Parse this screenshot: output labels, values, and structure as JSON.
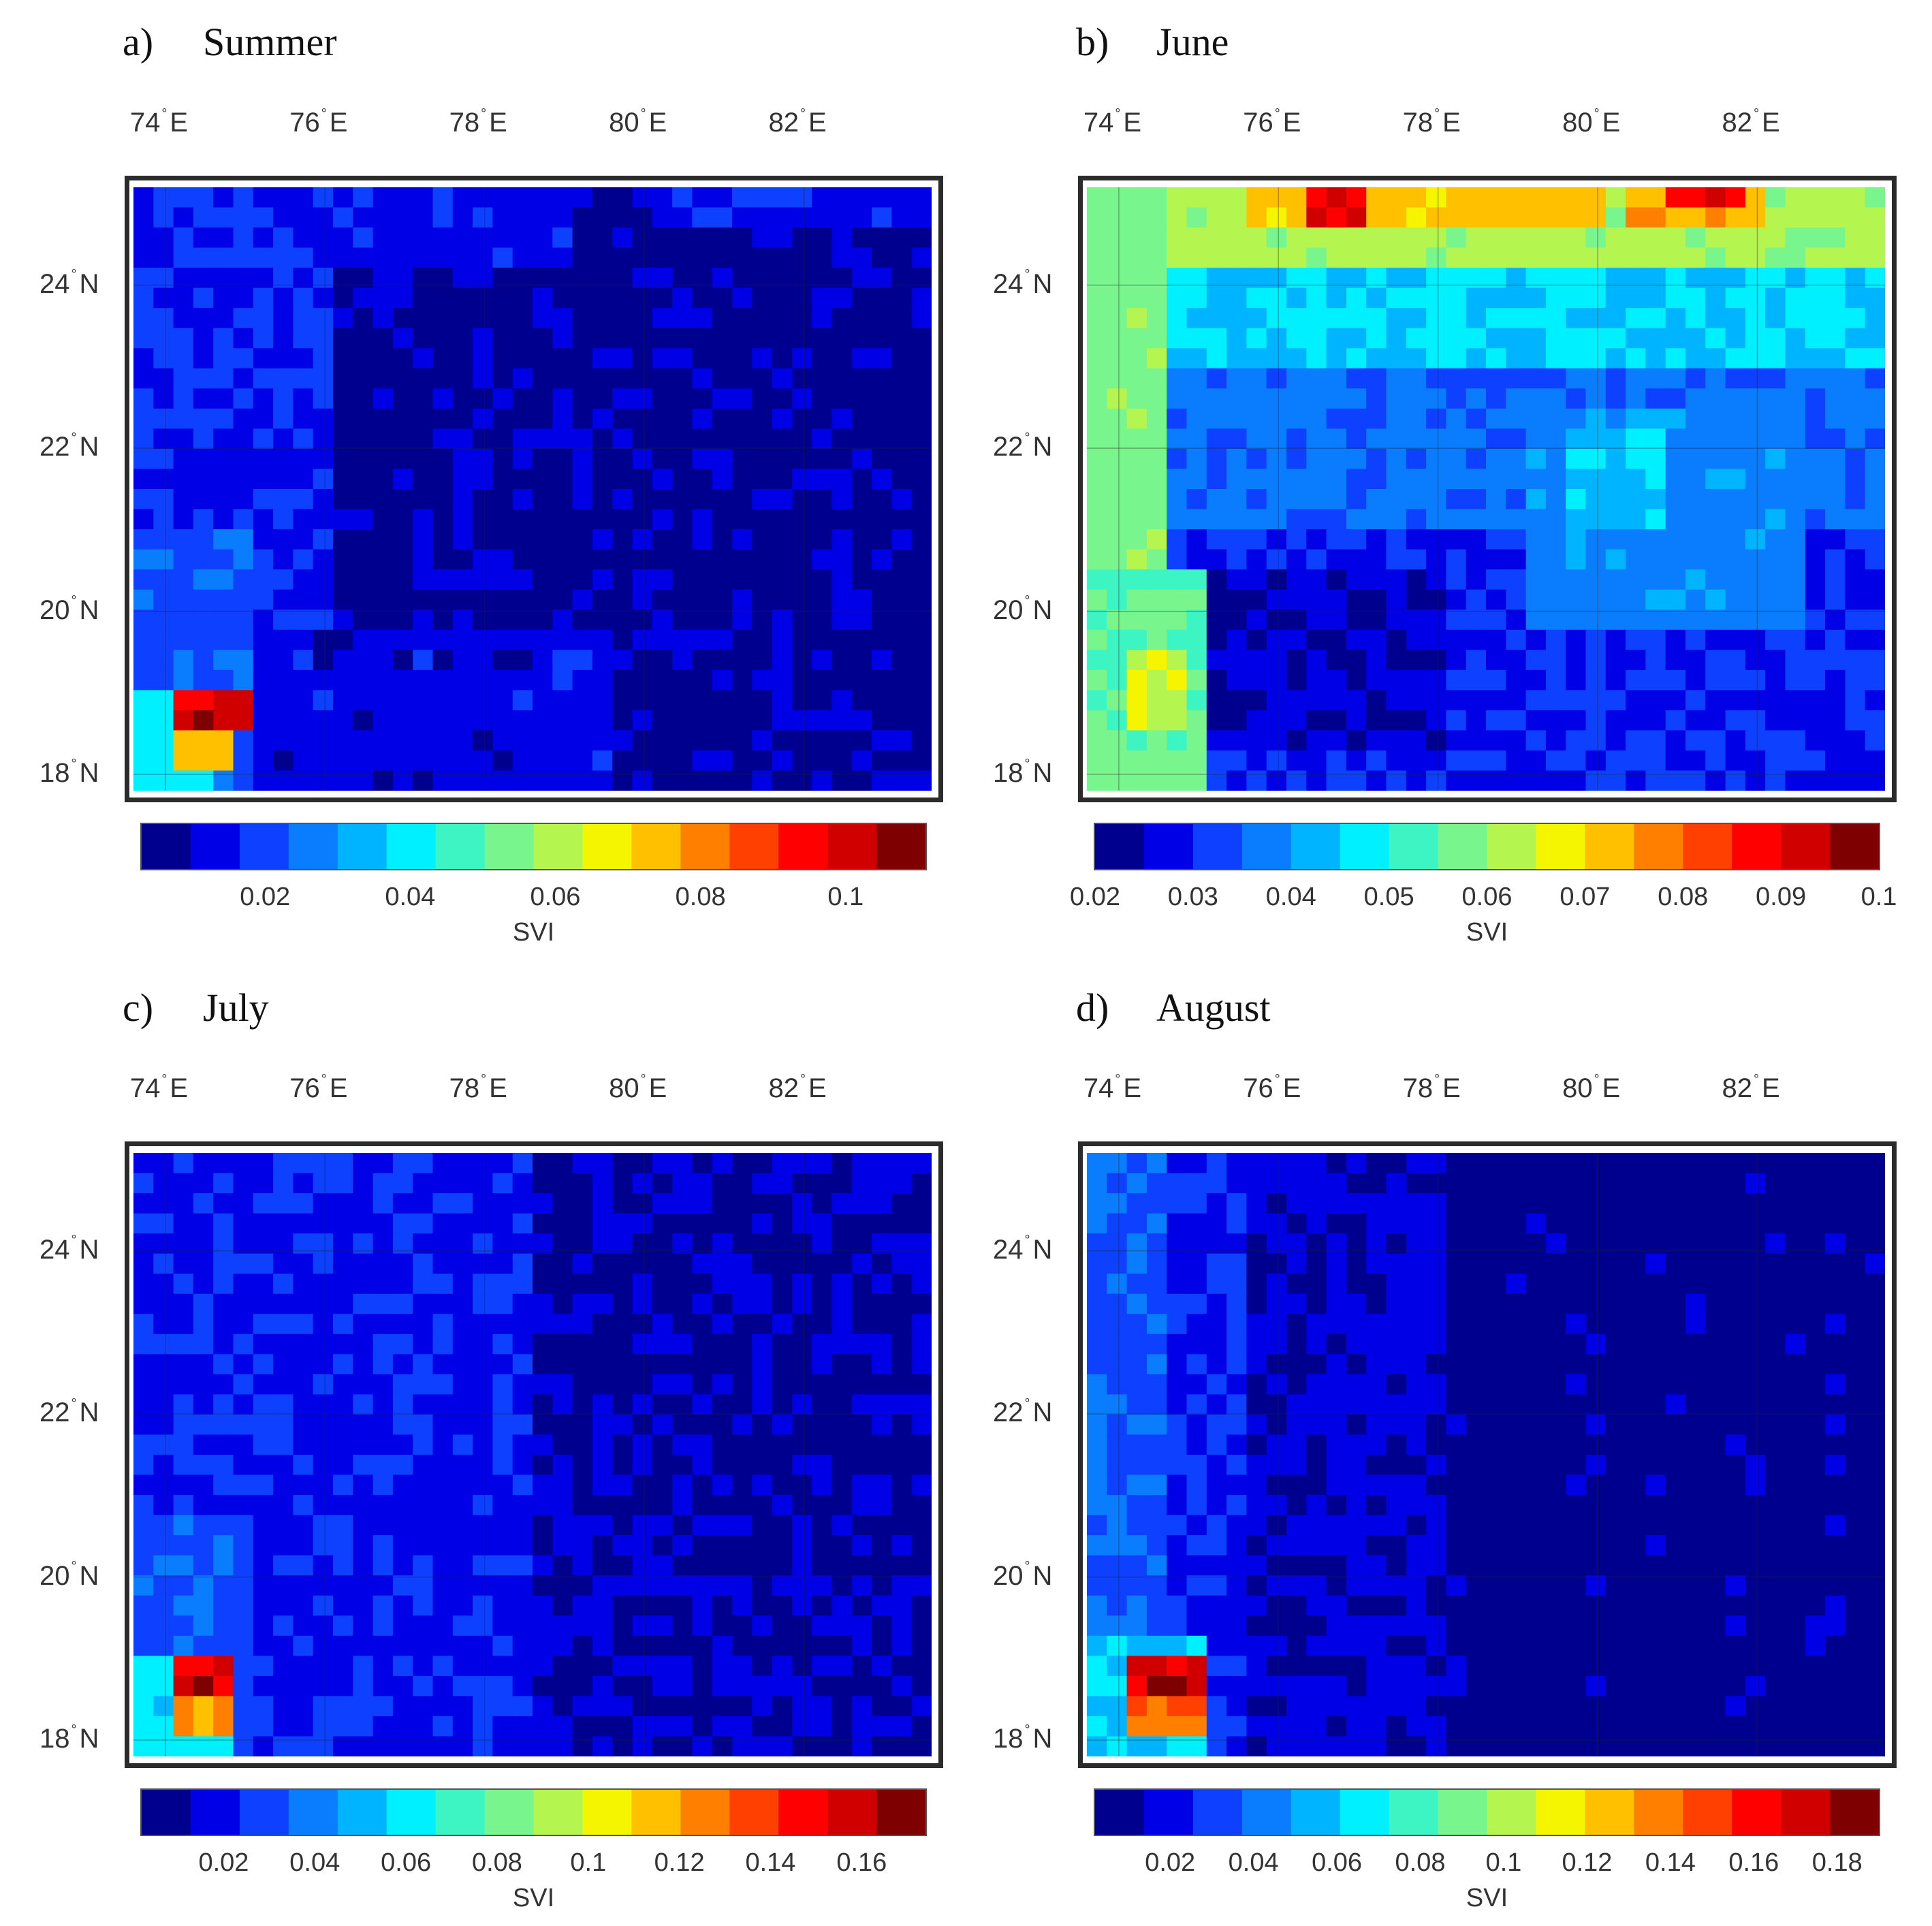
{
  "colormap": [
    "#00008f",
    "#0000e6",
    "#0d40ff",
    "#0a7dff",
    "#00b4ff",
    "#00f0ff",
    "#3cf5c3",
    "#78f58c",
    "#b4f550",
    "#f5f500",
    "#ffc000",
    "#ff8000",
    "#ff4000",
    "#ff0000",
    "#d00000",
    "#7f0000"
  ],
  "chart_data": [
    {
      "type": "heatmap",
      "title": "Summer",
      "letter": "a)",
      "x_ticks": [
        "74",
        "76",
        "78",
        "80",
        "82"
      ],
      "x_unit": "E",
      "y_ticks": [
        "24",
        "22",
        "20",
        "18"
      ],
      "y_unit": "N",
      "colorbar_label": "SVI",
      "colorbar_range": [
        0.003,
        0.111
      ],
      "colorbar_ticks": [
        "0.02",
        "0.04",
        "0.06",
        "0.08",
        "0.1"
      ],
      "colorbar_tick_values": [
        0.02,
        0.04,
        0.06,
        0.08,
        0.1
      ],
      "grid": {
        "lon_range": [
          73.6,
          83.6
        ],
        "lat_range": [
          17.8,
          25.2
        ],
        "ncols": 40,
        "nrows": 30,
        "data_units": "SVI"
      },
      "background_value": 0.008,
      "features": [
        {
          "lon": [
            73.6,
            76.0
          ],
          "lat": [
            17.8,
            25.2
          ],
          "value": 0.016
        },
        {
          "lon": [
            73.6,
            75.2
          ],
          "lat": [
            17.8,
            21.0
          ],
          "value": 0.022
        },
        {
          "lon": [
            75.2,
            79.6
          ],
          "lat": [
            17.8,
            19.8
          ],
          "value": 0.013
        },
        {
          "lon": [
            75.6,
            79.0
          ],
          "lat": [
            24.2,
            25.2
          ],
          "value": 0.014
        },
        {
          "lon": [
            80.0,
            83.6
          ],
          "lat": [
            24.6,
            25.2
          ],
          "value": 0.014
        },
        {
          "lon": [
            73.6,
            74.6
          ],
          "lat": [
            17.8,
            19.1
          ],
          "value": 0.04
        },
        {
          "lon": [
            74.0,
            74.8
          ],
          "lat": [
            18.1,
            19.1
          ],
          "value": 0.075
        },
        {
          "lon": [
            74.2,
            75.0
          ],
          "lat": [
            18.6,
            19.0
          ],
          "value": 0.1
        },
        {
          "lon": [
            74.4,
            74.6
          ],
          "lat": [
            18.6,
            18.8
          ],
          "value": 0.11
        }
      ]
    },
    {
      "type": "heatmap",
      "title": "June",
      "letter": "b)",
      "x_ticks": [
        "74",
        "76",
        "78",
        "80",
        "82"
      ],
      "x_unit": "E",
      "y_ticks": [
        "24",
        "22",
        "20",
        "18"
      ],
      "y_unit": "N",
      "colorbar_label": "SVI",
      "colorbar_range": [
        0.02,
        0.1
      ],
      "colorbar_ticks": [
        "0.02",
        "0.03",
        "0.04",
        "0.05",
        "0.06",
        "0.07",
        "0.08",
        "0.09",
        "0.1"
      ],
      "colorbar_tick_values": [
        0.02,
        0.03,
        0.04,
        0.05,
        0.06,
        0.07,
        0.08,
        0.09,
        0.1
      ],
      "grid": {
        "lon_range": [
          73.6,
          83.6
        ],
        "lat_range": [
          17.8,
          25.2
        ],
        "ncols": 40,
        "nrows": 30,
        "data_units": "SVI"
      },
      "background_value": 0.03,
      "features": [
        {
          "lon": [
            73.6,
            83.6
          ],
          "lat": [
            21.0,
            23.0
          ],
          "value": 0.036
        },
        {
          "lon": [
            73.6,
            83.6
          ],
          "lat": [
            23.0,
            24.3
          ],
          "value": 0.045
        },
        {
          "lon": [
            73.6,
            83.6
          ],
          "lat": [
            24.3,
            25.2
          ],
          "value": 0.062
        },
        {
          "lon": [
            75.6,
            80.0
          ],
          "lat": [
            24.6,
            25.2
          ],
          "value": 0.072
        },
        {
          "lon": [
            80.4,
            82.0
          ],
          "lat": [
            24.6,
            25.2
          ],
          "value": 0.075
        },
        {
          "lon": [
            76.4,
            77.2
          ],
          "lat": [
            24.8,
            25.2
          ],
          "value": 0.09
        },
        {
          "lon": [
            80.8,
            81.8
          ],
          "lat": [
            24.9,
            25.2
          ],
          "value": 0.09
        },
        {
          "lon": [
            73.6,
            74.6
          ],
          "lat": [
            20.5,
            25.2
          ],
          "value": 0.058
        },
        {
          "lon": [
            73.6,
            75.0
          ],
          "lat": [
            17.8,
            20.5
          ],
          "value": 0.055
        },
        {
          "lon": [
            74.0,
            74.8
          ],
          "lat": [
            18.6,
            19.6
          ],
          "value": 0.065
        },
        {
          "lon": [
            79.0,
            82.6
          ],
          "lat": [
            19.8,
            22.5
          ],
          "value": 0.038
        },
        {
          "lon": [
            79.6,
            80.8
          ],
          "lat": [
            21.0,
            22.2
          ],
          "value": 0.045
        },
        {
          "lon": [
            75.0,
            78.2
          ],
          "lat": [
            18.2,
            20.5
          ],
          "value": 0.025
        }
      ]
    },
    {
      "type": "heatmap",
      "title": "July",
      "letter": "c)",
      "x_ticks": [
        "74",
        "76",
        "78",
        "80",
        "82"
      ],
      "x_unit": "E",
      "y_ticks": [
        "24",
        "22",
        "20",
        "18"
      ],
      "y_unit": "N",
      "colorbar_label": "SVI",
      "colorbar_range": [
        0.002,
        0.174
      ],
      "colorbar_ticks": [
        "0.02",
        "0.04",
        "0.06",
        "0.08",
        "0.1",
        "0.12",
        "0.14",
        "0.16"
      ],
      "colorbar_tick_values": [
        0.02,
        0.04,
        0.06,
        0.08,
        0.1,
        0.12,
        0.14,
        0.16
      ],
      "grid": {
        "lon_range": [
          73.6,
          83.6
        ],
        "lat_range": [
          17.8,
          25.2
        ],
        "ncols": 40,
        "nrows": 30,
        "data_units": "SVI"
      },
      "background_value": 0.014,
      "features": [
        {
          "lon": [
            73.6,
            78.6
          ],
          "lat": [
            17.8,
            25.2
          ],
          "value": 0.022
        },
        {
          "lon": [
            78.6,
            83.6
          ],
          "lat": [
            20.0,
            24.8
          ],
          "value": 0.011
        },
        {
          "lon": [
            73.6,
            75.0
          ],
          "lat": [
            17.8,
            20.8
          ],
          "value": 0.032
        },
        {
          "lon": [
            73.6,
            74.8
          ],
          "lat": [
            17.8,
            19.1
          ],
          "value": 0.06
        },
        {
          "lon": [
            74.0,
            74.8
          ],
          "lat": [
            18.0,
            19.1
          ],
          "value": 0.12
        },
        {
          "lon": [
            74.2,
            74.9
          ],
          "lat": [
            18.5,
            19.0
          ],
          "value": 0.15
        },
        {
          "lon": [
            74.4,
            74.7
          ],
          "lat": [
            18.6,
            18.8
          ],
          "value": 0.17
        }
      ]
    },
    {
      "type": "heatmap",
      "title": "August",
      "letter": "d)",
      "x_ticks": [
        "74",
        "76",
        "78",
        "80",
        "82"
      ],
      "x_unit": "E",
      "y_ticks": [
        "24",
        "22",
        "20",
        "18"
      ],
      "y_unit": "N",
      "colorbar_label": "SVI",
      "colorbar_range": [
        0.002,
        0.19
      ],
      "colorbar_ticks": [
        "0.02",
        "0.04",
        "0.06",
        "0.08",
        "0.1",
        "0.12",
        "0.14",
        "0.16",
        "0.18"
      ],
      "colorbar_tick_values": [
        0.02,
        0.04,
        0.06,
        0.08,
        0.1,
        0.12,
        0.14,
        0.16,
        0.18
      ],
      "grid": {
        "lon_range": [
          73.6,
          83.6
        ],
        "lat_range": [
          17.8,
          25.2
        ],
        "ncols": 40,
        "nrows": 30,
        "data_units": "SVI"
      },
      "background_value": 0.008,
      "features": [
        {
          "lon": [
            73.6,
            78.2
          ],
          "lat": [
            17.8,
            25.2
          ],
          "value": 0.016
        },
        {
          "lon": [
            73.6,
            75.6
          ],
          "lat": [
            17.8,
            25.2
          ],
          "value": 0.024
        },
        {
          "lon": [
            73.6,
            74.6
          ],
          "lat": [
            19.2,
            25.2
          ],
          "value": 0.035
        },
        {
          "lon": [
            73.6,
            75.0
          ],
          "lat": [
            17.8,
            19.3
          ],
          "value": 0.06
        },
        {
          "lon": [
            74.0,
            75.0
          ],
          "lat": [
            18.1,
            19.1
          ],
          "value": 0.14
        },
        {
          "lon": [
            74.2,
            75.0
          ],
          "lat": [
            18.6,
            19.0
          ],
          "value": 0.17
        },
        {
          "lon": [
            74.4,
            74.8
          ],
          "lat": [
            18.6,
            18.8
          ],
          "value": 0.19
        }
      ]
    }
  ]
}
